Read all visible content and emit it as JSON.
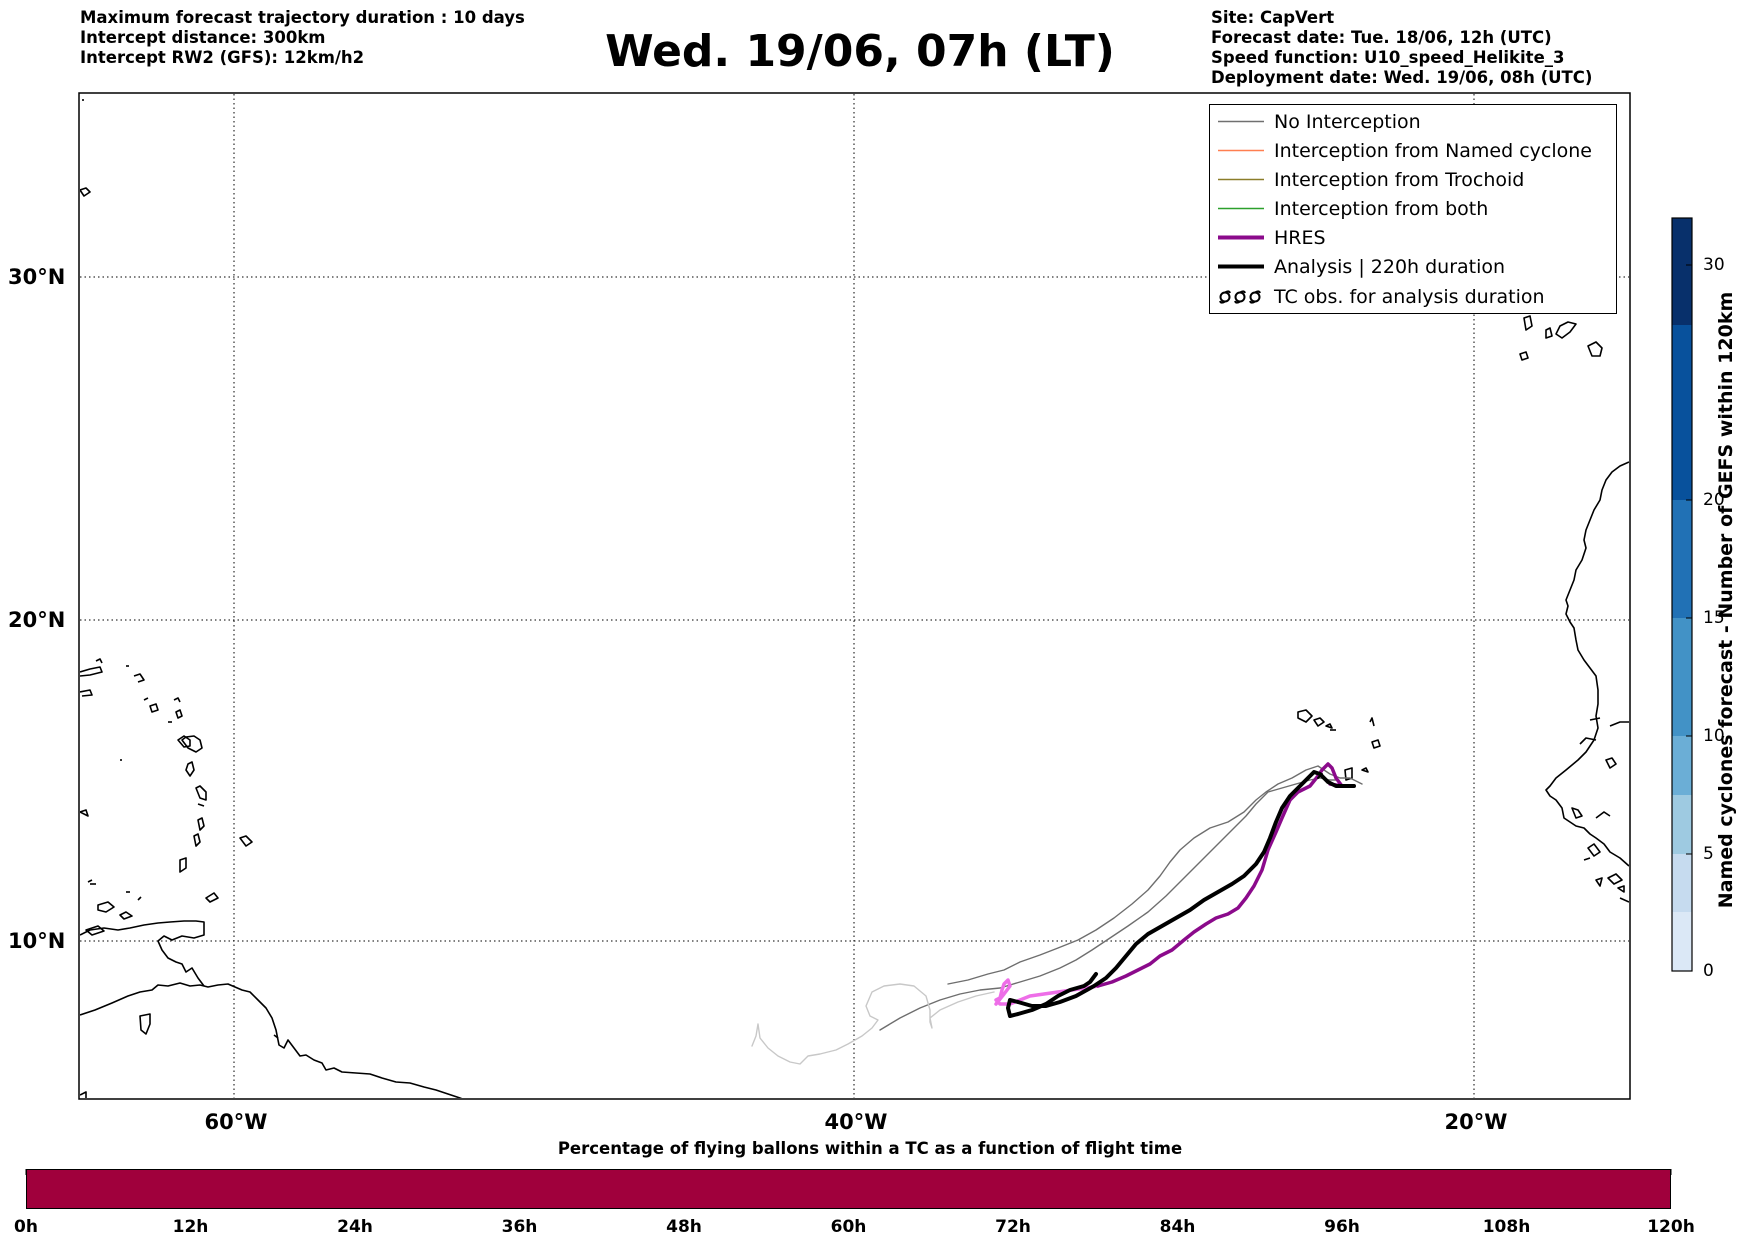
{
  "header_left": {
    "line1": "Maximum forecast trajectory duration : 10 days",
    "line2": "Intercept distance: 300km",
    "line3": "Intercept RW2 (GFS):  12km/h2"
  },
  "title": "Wed. 19/06, 07h (LT)",
  "header_right": {
    "line1": "Site: CapVert",
    "line2": "Forecast date: Tue. 18/06, 12h (UTC)",
    "line3": "Speed function: U10_speed_Helikite_3",
    "line4": "Deployment date: Wed. 19/06, 08h (UTC)"
  },
  "map": {
    "lat_labels": [
      "30°N",
      "20°N",
      "10°N"
    ],
    "lon_labels": [
      "60°W",
      "40°W",
      "20°W"
    ]
  },
  "legend": {
    "items": [
      {
        "label": "No Interception",
        "color": "#707070"
      },
      {
        "label": "Interception from Named cyclone",
        "color": "#ff7f50"
      },
      {
        "label": "Interception from Trochoid",
        "color": "#8b7d2a"
      },
      {
        "label": "Interception from both",
        "color": "#2ca02c"
      },
      {
        "label": "HRES",
        "color": "#8b0a8b"
      },
      {
        "label": "Analysis | 220h duration",
        "color": "#000000"
      },
      {
        "label": "TC obs. for analysis duration",
        "color": "#000000",
        "icon": "tc-obs-icon"
      }
    ]
  },
  "colorbar": {
    "label": "Named cyclones forecast - Number of GEFS within 120km",
    "ticks": [
      "0",
      "5",
      "10",
      "15",
      "20",
      "30"
    ],
    "colors": [
      "#dbe8f6",
      "#c6dbef",
      "#9ecae1",
      "#6baed6",
      "#4292c6",
      "#2171b5",
      "#08519c",
      "#08306b"
    ]
  },
  "flight_bar": {
    "title": "Percentage of flying ballons within a TC as a function of flight time",
    "color": "#a0003c",
    "ticks": [
      "0h",
      "12h",
      "24h",
      "36h",
      "48h",
      "60h",
      "72h",
      "84h",
      "96h",
      "108h",
      "120h"
    ]
  }
}
